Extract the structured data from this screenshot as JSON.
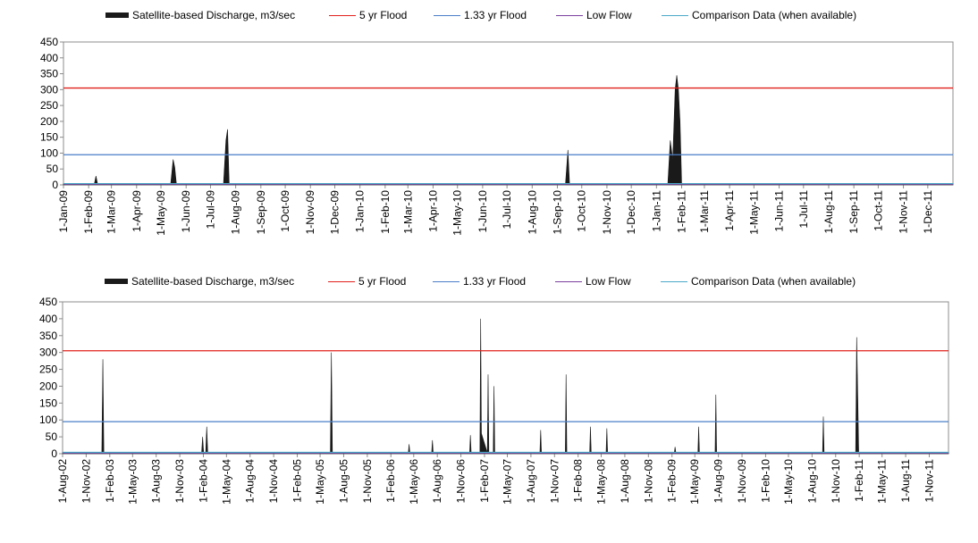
{
  "colors": {
    "discharge": "#1a1a1a",
    "flood_5yr": "#e0201b",
    "flood_133yr": "#4a7ec9",
    "low_flow": "#7b3f9e",
    "comparison": "#4aa8c8"
  },
  "legend": {
    "discharge": "Satellite-based Discharge, m3/sec",
    "flood_5yr": "5 yr Flood",
    "flood_133yr": "1.33 yr Flood",
    "low_flow": "Low Flow",
    "comparison": "Comparison Data (when available)"
  },
  "chart_data": [
    {
      "type": "area",
      "ylim": [
        0,
        450
      ],
      "yticks": [
        0,
        50,
        100,
        150,
        200,
        250,
        300,
        350,
        400,
        450
      ],
      "xlim": [
        "2009-01-01",
        "2012-01-01"
      ],
      "x_tick_labels": [
        "1-Jan-09",
        "1-Feb-09",
        "1-Mar-09",
        "1-Apr-09",
        "1-May-09",
        "1-Jun-09",
        "1-Jul-09",
        "1-Aug-09",
        "1-Sep-09",
        "1-Oct-09",
        "1-Nov-09",
        "1-Dec-09",
        "1-Jan-10",
        "1-Feb-10",
        "1-Mar-10",
        "1-Apr-10",
        "1-May-10",
        "1-Jun-10",
        "1-Jul-10",
        "1-Aug-10",
        "1-Sep-10",
        "1-Oct-10",
        "1-Nov-10",
        "1-Dec-10",
        "1-Jan-11",
        "1-Feb-11",
        "1-Mar-11",
        "1-Apr-11",
        "1-May-11",
        "1-Jun-11",
        "1-Jul-11",
        "1-Aug-11",
        "1-Sep-11",
        "1-Oct-11",
        "1-Nov-11",
        "1-Dec-11"
      ],
      "x_tick_dates": [
        "2009-01-01",
        "2009-02-01",
        "2009-03-01",
        "2009-04-01",
        "2009-05-01",
        "2009-06-01",
        "2009-07-01",
        "2009-08-01",
        "2009-09-01",
        "2009-10-01",
        "2009-11-01",
        "2009-12-01",
        "2010-01-01",
        "2010-02-01",
        "2010-03-01",
        "2010-04-01",
        "2010-05-01",
        "2010-06-01",
        "2010-07-01",
        "2010-08-01",
        "2010-09-01",
        "2010-10-01",
        "2010-11-01",
        "2010-12-01",
        "2011-01-01",
        "2011-02-01",
        "2011-03-01",
        "2011-04-01",
        "2011-05-01",
        "2011-06-01",
        "2011-07-01",
        "2011-08-01",
        "2011-09-01",
        "2011-10-01",
        "2011-11-01",
        "2011-12-01"
      ],
      "flood_5yr": 305,
      "flood_133yr": 95,
      "low_flow": 2,
      "comparison": 4,
      "series": [
        {
          "name": "Satellite-based Discharge, m3/sec",
          "points": [
            [
              "2009-01-01",
              3
            ],
            [
              "2009-02-08",
              3
            ],
            [
              "2009-02-10",
              28
            ],
            [
              "2009-02-12",
              3
            ],
            [
              "2009-05-13",
              3
            ],
            [
              "2009-05-16",
              80
            ],
            [
              "2009-05-18",
              55
            ],
            [
              "2009-05-20",
              3
            ],
            [
              "2009-07-17",
              3
            ],
            [
              "2009-07-20",
              140
            ],
            [
              "2009-07-22",
              175
            ],
            [
              "2009-07-24",
              3
            ],
            [
              "2010-09-11",
              3
            ],
            [
              "2010-09-14",
              110
            ],
            [
              "2010-09-16",
              3
            ],
            [
              "2011-01-15",
              3
            ],
            [
              "2011-01-18",
              140
            ],
            [
              "2011-01-21",
              80
            ],
            [
              "2011-01-24",
              300
            ],
            [
              "2011-01-26",
              345
            ],
            [
              "2011-01-28",
              300
            ],
            [
              "2011-01-30",
              200
            ],
            [
              "2011-02-01",
              3
            ],
            [
              "2012-01-01",
              3
            ]
          ]
        }
      ]
    },
    {
      "type": "area",
      "ylim": [
        0,
        450
      ],
      "yticks": [
        0,
        50,
        100,
        150,
        200,
        250,
        300,
        350,
        400,
        450
      ],
      "xlim": [
        "2002-08-01",
        "2012-01-15"
      ],
      "x_tick_labels": [
        "1-Aug-02",
        "1-Nov-02",
        "1-Feb-03",
        "1-May-03",
        "1-Aug-03",
        "1-Nov-03",
        "1-Feb-04",
        "1-May-04",
        "1-Aug-04",
        "1-Nov-04",
        "1-Feb-05",
        "1-May-05",
        "1-Aug-05",
        "1-Nov-05",
        "1-Feb-06",
        "1-May-06",
        "1-Aug-06",
        "1-Nov-06",
        "1-Feb-07",
        "1-May-07",
        "1-Aug-07",
        "1-Nov-07",
        "1-Feb-08",
        "1-May-08",
        "1-Aug-08",
        "1-Nov-08",
        "1-Feb-09",
        "1-May-09",
        "1-Aug-09",
        "1-Nov-09",
        "1-Feb-10",
        "1-May-10",
        "1-Aug-10",
        "1-Nov-10",
        "1-Feb-11",
        "1-May-11",
        "1-Aug-11",
        "1-Nov-11"
      ],
      "x_tick_dates": [
        "2002-08-01",
        "2002-11-01",
        "2003-02-01",
        "2003-05-01",
        "2003-08-01",
        "2003-11-01",
        "2004-02-01",
        "2004-05-01",
        "2004-08-01",
        "2004-11-01",
        "2005-02-01",
        "2005-05-01",
        "2005-08-01",
        "2005-11-01",
        "2006-02-01",
        "2006-05-01",
        "2006-08-01",
        "2006-11-01",
        "2007-02-01",
        "2007-05-01",
        "2007-08-01",
        "2007-11-01",
        "2008-02-01",
        "2008-05-01",
        "2008-08-01",
        "2008-11-01",
        "2009-02-01",
        "2009-05-01",
        "2009-08-01",
        "2009-11-01",
        "2010-02-01",
        "2010-05-01",
        "2010-08-01",
        "2010-11-01",
        "2011-02-01",
        "2011-05-01",
        "2011-08-01",
        "2011-11-01"
      ],
      "flood_5yr": 305,
      "flood_133yr": 95,
      "low_flow": 2,
      "comparison": 4,
      "series": [
        {
          "name": "Satellite-based Discharge, m3/sec",
          "points": [
            [
              "2002-08-01",
              3
            ],
            [
              "2003-01-01",
              3
            ],
            [
              "2003-01-05",
              280
            ],
            [
              "2003-01-09",
              3
            ],
            [
              "2004-01-25",
              3
            ],
            [
              "2004-01-29",
              50
            ],
            [
              "2004-02-02",
              3
            ],
            [
              "2004-02-10",
              3
            ],
            [
              "2004-02-14",
              80
            ],
            [
              "2004-02-18",
              3
            ],
            [
              "2005-06-10",
              3
            ],
            [
              "2005-06-14",
              300
            ],
            [
              "2005-06-18",
              3
            ],
            [
              "2006-04-10",
              3
            ],
            [
              "2006-04-13",
              28
            ],
            [
              "2006-04-16",
              3
            ],
            [
              "2006-07-10",
              3
            ],
            [
              "2006-07-13",
              40
            ],
            [
              "2006-07-16",
              3
            ],
            [
              "2006-12-05",
              3
            ],
            [
              "2006-12-08",
              55
            ],
            [
              "2006-12-11",
              3
            ],
            [
              "2007-01-14",
              3
            ],
            [
              "2007-01-17",
              400
            ],
            [
              "2007-01-20",
              60
            ],
            [
              "2007-02-12",
              3
            ],
            [
              "2007-02-15",
              235
            ],
            [
              "2007-02-18",
              3
            ],
            [
              "2007-03-07",
              3
            ],
            [
              "2007-03-10",
              200
            ],
            [
              "2007-03-13",
              3
            ],
            [
              "2007-09-05",
              3
            ],
            [
              "2007-09-08",
              70
            ],
            [
              "2007-09-11",
              3
            ],
            [
              "2007-12-13",
              3
            ],
            [
              "2007-12-16",
              235
            ],
            [
              "2007-12-19",
              3
            ],
            [
              "2008-03-17",
              3
            ],
            [
              "2008-03-20",
              80
            ],
            [
              "2008-03-23",
              3
            ],
            [
              "2008-05-20",
              3
            ],
            [
              "2008-05-23",
              75
            ],
            [
              "2008-05-26",
              3
            ],
            [
              "2009-02-10",
              3
            ],
            [
              "2009-02-13",
              20
            ],
            [
              "2009-02-16",
              3
            ],
            [
              "2009-05-13",
              3
            ],
            [
              "2009-05-16",
              80
            ],
            [
              "2009-05-19",
              3
            ],
            [
              "2009-07-19",
              3
            ],
            [
              "2009-07-22",
              175
            ],
            [
              "2009-07-25",
              3
            ],
            [
              "2010-09-11",
              3
            ],
            [
              "2010-09-14",
              110
            ],
            [
              "2010-09-17",
              3
            ],
            [
              "2011-01-18",
              3
            ],
            [
              "2011-01-22",
              345
            ],
            [
              "2011-01-26",
              180
            ],
            [
              "2011-01-30",
              3
            ],
            [
              "2012-01-15",
              3
            ]
          ]
        }
      ]
    }
  ]
}
